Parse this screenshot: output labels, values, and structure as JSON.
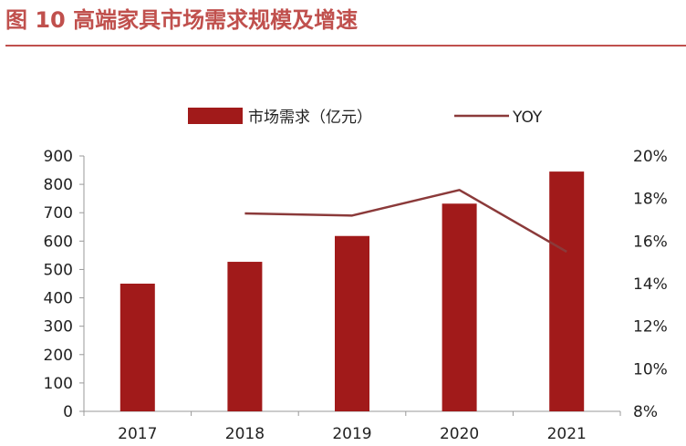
{
  "title": "图 10 高端家具市场需求规模及增速",
  "colors": {
    "title": "#C0504D",
    "bar": "#A11A1A",
    "line": "#8B3A3A",
    "axis": "#999999"
  },
  "chart_data": {
    "type": "bar",
    "categories": [
      "2017",
      "2018",
      "2019",
      "2020",
      "2021"
    ],
    "series": [
      {
        "name": "市场需求（亿元）",
        "type": "bar",
        "axis": "left",
        "values": [
          450,
          527,
          618,
          732,
          845
        ]
      },
      {
        "name": "YOY",
        "type": "line",
        "axis": "right",
        "values": [
          null,
          17.3,
          17.2,
          18.4,
          15.5
        ]
      }
    ],
    "y_left": {
      "min": 0,
      "max": 900,
      "step": 100,
      "ticks": [
        "0",
        "100",
        "200",
        "300",
        "400",
        "500",
        "600",
        "700",
        "800",
        "900"
      ]
    },
    "y_right": {
      "min": 8,
      "max": 20,
      "step": 2,
      "ticks": [
        "8%",
        "10%",
        "12%",
        "14%",
        "16%",
        "18%",
        "20%"
      ]
    },
    "legend": {
      "position": "top",
      "bar_label": "市场需求（亿元）",
      "line_label": "YOY"
    }
  }
}
